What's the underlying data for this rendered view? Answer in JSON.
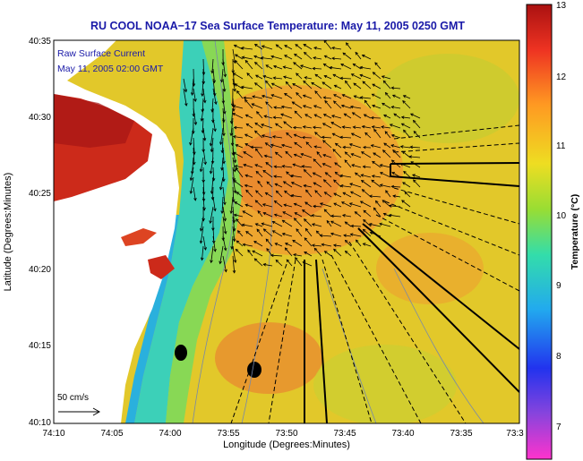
{
  "title": "RU COOL  NOAA−17  Sea Surface Temperature:  May 11, 2005 0250 GMT",
  "legend": {
    "line1": "Raw Surface Current",
    "line2": "May 11, 2005 02:00 GMT",
    "scale_label": "50 cm/s"
  },
  "axes": {
    "xlabel": "Longitude (Degrees:Minutes)",
    "ylabel": "Latitude (Degrees:Minutes)",
    "xticks": [
      "74:10",
      "74:05",
      "74:00",
      "73:55",
      "73:50",
      "73:45",
      "73:40",
      "73:35",
      "73:3"
    ],
    "yticks": [
      "40:35",
      "40:30",
      "40:25",
      "40:20",
      "40:15",
      "40:10"
    ]
  },
  "colorbar": {
    "label": "Temperature (°C)",
    "ticks": [
      "13",
      "12",
      "11",
      "10",
      "9",
      "8",
      "7"
    ],
    "min": 6.3,
    "max": 13
  },
  "colors": {
    "title": "#1a1aa8",
    "land": "#ffffff",
    "current_arrows": "#000000"
  }
}
